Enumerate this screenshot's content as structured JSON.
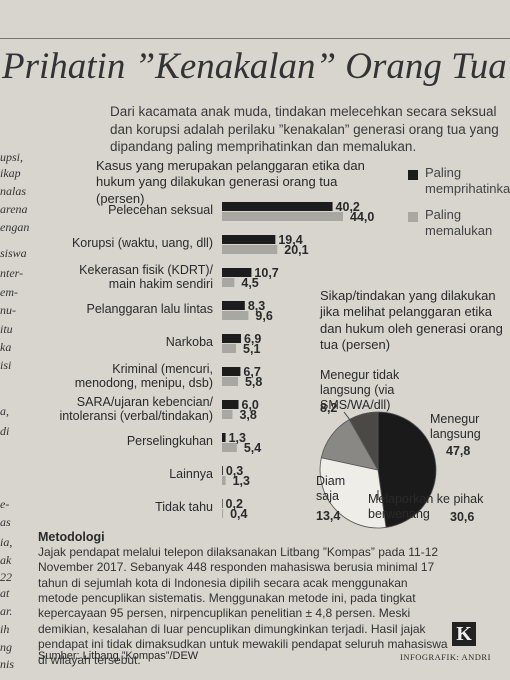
{
  "title": "Prihatin ”Kenakalan” Orang Tua",
  "intro": "Dari kacamata anak muda, tindakan melecehkan secara seksual dan korupsi adalah perilaku ”kenakalan” generasi orang tua yang dipandang paling memprihatinkan dan memalukan.",
  "side_text": [
    "upsi,",
    "ikap",
    "nalas",
    "arena",
    "engan",
    "siswa",
    "nter-",
    "em-",
    "nu-",
    "itu",
    "ka",
    "isi",
    "a,",
    "di",
    "e-",
    "as",
    "ia,",
    "ak",
    "22",
    "at",
    "ar.",
    "ih",
    "ng",
    "nis"
  ],
  "chart_data": [
    {
      "type": "bar",
      "orientation": "horizontal",
      "title": "Kasus yang merupakan pelanggaran etika dan hukum yang dilakukan generasi orang tua (persen)",
      "categories": [
        "Pelecehan seksual",
        "Korupsi (waktu, uang, dll)",
        "Kekerasan fisik (KDRT)/\nmain hakim sendiri",
        "Pelanggaran lalu lintas",
        "Narkoba",
        "Kriminal (mencuri,\nmenodong, menipu, dsb)",
        "SARA/ujaran kebencian/\nintoleransi (verbal/tindakan)",
        "Perselingkuhan",
        "Lainnya",
        "Tidak tahu"
      ],
      "series": [
        {
          "name": "Paling memprihatinkan",
          "color": "#1c1c1c",
          "values": [
            40.2,
            19.4,
            10.7,
            8.3,
            6.9,
            6.7,
            6.0,
            1.3,
            0.3,
            0.2
          ],
          "value_labels": [
            "40,2",
            "19,4",
            "10,7",
            "8,3",
            "6,9",
            "6,7",
            "6,0",
            "1,3",
            "0,3",
            "0,2"
          ]
        },
        {
          "name": "Paling memalukan",
          "color": "#a9a7a2",
          "values": [
            44.0,
            20.1,
            4.5,
            9.6,
            5.1,
            5.8,
            3.8,
            5.4,
            1.3,
            0.4
          ],
          "value_labels": [
            "44,0",
            "20,1",
            "4,5",
            "9,6",
            "5,1",
            "5,8",
            "3,8",
            "5,4",
            "1,3",
            "0,4"
          ]
        }
      ],
      "legend": "top-right"
    },
    {
      "type": "pie",
      "title": "Sikap/tindakan yang dilakukan jika melihat pelanggaran etika dan hukum oleh generasi orang tua (persen)",
      "categories": [
        "Menegur langsung",
        "Melaporkan ke pihak berwenang",
        "Diam saja",
        "Menegur tidak langsung (via SMS/WA/dll)"
      ],
      "values": [
        47.8,
        30.6,
        13.4,
        8.2
      ],
      "value_labels": [
        "47,8",
        "30,6",
        "13,4",
        "8,2"
      ],
      "colors": [
        "#1a1a1a",
        "#efede8",
        "#8a8884",
        "#4a4946"
      ]
    }
  ],
  "methodology": {
    "heading": "Metodologi",
    "text": "Jajak pendapat melalui telepon dilaksanakan Litbang ”Kompas” pada 11-12 November 2017. Sebanyak 448 responden mahasiswa berusia minimal 17 tahun di sejumlah kota di Indonesia dipilih secara acak menggunakan metode pencuplikan sistematis. Menggunakan metode ini, pada tingkat kepercayaan 95 persen, nirpencuplikan penelitian ± 4,8 persen. Meski demikian, kesalahan di luar pencuplikan dimungkinkan terjadi. Hasil jajak pendapat ini tidak dimaksudkan untuk mewakili pendapat seluruh mahasiswa di wilayah tersebut."
  },
  "source": "Sumber: Litbang ”Kompas”/DEW",
  "credit": "INFOGRAFIK: ANDRI",
  "logo": "K"
}
